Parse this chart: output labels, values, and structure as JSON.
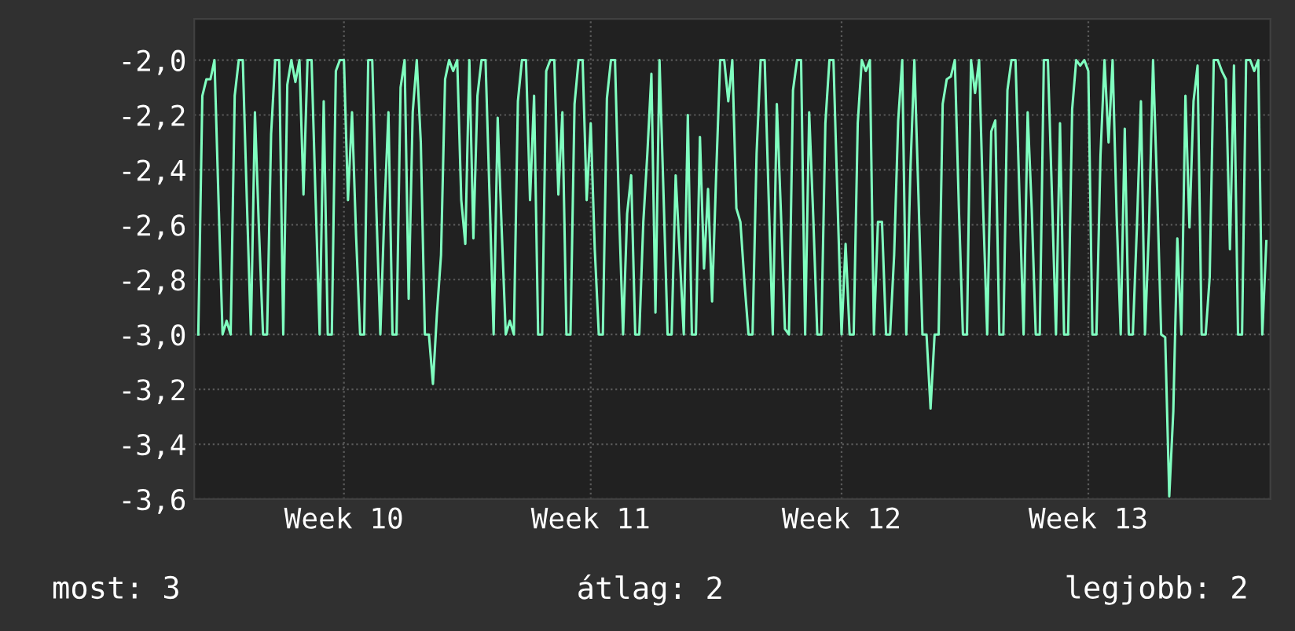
{
  "chart_data": {
    "type": "line",
    "categories": [
      null,
      null,
      null,
      null,
      null,
      null,
      null,
      null,
      null,
      null,
      null,
      null,
      null,
      null,
      null,
      null,
      null,
      null,
      null,
      null,
      null,
      null,
      null,
      null,
      null,
      null,
      null,
      null,
      null,
      null,
      null,
      null,
      null,
      null,
      null,
      null,
      "Week 10",
      null,
      null,
      null,
      null,
      null,
      null,
      null,
      null,
      null,
      null,
      null,
      null,
      null,
      null,
      null,
      null,
      null,
      null,
      null,
      null,
      null,
      null,
      null,
      null,
      null,
      null,
      null,
      null,
      null,
      null,
      null,
      null,
      null,
      null,
      null,
      null,
      null,
      null,
      null,
      null,
      null,
      null,
      null,
      null,
      null,
      null,
      null,
      null,
      null,
      null,
      null,
      null,
      null,
      null,
      null,
      null,
      null,
      null,
      null,
      null,
      "Week 11",
      null,
      null,
      null,
      null,
      null,
      null,
      null,
      null,
      null,
      null,
      null,
      null,
      null,
      null,
      null,
      null,
      null,
      null,
      null,
      null,
      null,
      null,
      null,
      null,
      null,
      null,
      null,
      null,
      null,
      null,
      null,
      null,
      null,
      null,
      null,
      null,
      null,
      null,
      null,
      null,
      null,
      null,
      null,
      null,
      null,
      null,
      null,
      null,
      null,
      null,
      null,
      null,
      null,
      null,
      null,
      null,
      null,
      null,
      null,
      null,
      null,
      "Week 12",
      null,
      null,
      null,
      null,
      null,
      null,
      null,
      null,
      null,
      null,
      null,
      null,
      null,
      null,
      null,
      null,
      null,
      null,
      null,
      null,
      null,
      null,
      null,
      null,
      null,
      null,
      null,
      null,
      null,
      null,
      null,
      null,
      null,
      null,
      null,
      null,
      null,
      null,
      null,
      null,
      null,
      null,
      null,
      null,
      null,
      null,
      null,
      null,
      null,
      null,
      null,
      null,
      null,
      null,
      null,
      null,
      null,
      null,
      null,
      null,
      "Week 13",
      null,
      null,
      null,
      null,
      null,
      null,
      null,
      null,
      null,
      null,
      null,
      null,
      null,
      null,
      null,
      null,
      null,
      null,
      null,
      null,
      null,
      null,
      null,
      null,
      null,
      null,
      null,
      null,
      null,
      null,
      null,
      null,
      null,
      null,
      null,
      null,
      null,
      null,
      null,
      null,
      null,
      null,
      null,
      null
    ],
    "series": [
      {
        "color": "#80ffc0",
        "values": [
          -3.0,
          -2.13,
          -2.07,
          -2.07,
          -2.0,
          -2.51,
          -3.0,
          -2.95,
          -3.0,
          -2.13,
          -2.0,
          -2.0,
          -2.51,
          -3.0,
          -2.19,
          -2.62,
          -3.0,
          -3.0,
          -2.27,
          -2.0,
          -2.0,
          -3.0,
          -2.09,
          -2.0,
          -2.08,
          -2.0,
          -2.49,
          -2.0,
          -2.0,
          -2.51,
          -3.0,
          -2.15,
          -3.0,
          -3.0,
          -2.04,
          -2.0,
          -2.0,
          -2.51,
          -2.19,
          -2.64,
          -3.0,
          -3.0,
          -2.0,
          -2.0,
          -2.54,
          -3.0,
          -2.55,
          -2.19,
          -3.0,
          -3.0,
          -2.1,
          -2.0,
          -2.87,
          -2.19,
          -2.0,
          -2.3,
          -3.0,
          -3.0,
          -3.18,
          -2.92,
          -2.71,
          -2.07,
          -2.0,
          -2.04,
          -2.0,
          -2.51,
          -2.67,
          -2.0,
          -2.65,
          -2.13,
          -2.0,
          -2.0,
          -2.5,
          -3.0,
          -2.21,
          -2.62,
          -3.0,
          -2.95,
          -3.0,
          -2.15,
          -2.0,
          -2.0,
          -2.51,
          -2.13,
          -3.0,
          -3.0,
          -2.04,
          -2.0,
          -2.0,
          -2.49,
          -2.19,
          -3.0,
          -3.0,
          -2.16,
          -2.0,
          -2.0,
          -2.51,
          -2.23,
          -2.69,
          -3.0,
          -3.0,
          -2.14,
          -2.0,
          -2.0,
          -2.55,
          -3.0,
          -2.56,
          -2.42,
          -3.0,
          -3.0,
          -2.59,
          -2.34,
          -2.05,
          -2.92,
          -2.0,
          -2.49,
          -3.0,
          -3.0,
          -2.42,
          -2.71,
          -3.0,
          -2.2,
          -3.0,
          -3.0,
          -2.28,
          -2.76,
          -2.47,
          -2.88,
          -2.42,
          -2.0,
          -2.0,
          -2.15,
          -2.0,
          -2.54,
          -2.59,
          -2.81,
          -3.0,
          -3.0,
          -2.34,
          -2.0,
          -2.0,
          -2.51,
          -3.0,
          -2.16,
          -2.55,
          -2.98,
          -3.0,
          -2.11,
          -2.0,
          -2.0,
          -3.0,
          -2.19,
          -2.57,
          -3.0,
          -3.0,
          -2.23,
          -2.0,
          -2.0,
          -2.51,
          -3.0,
          -2.67,
          -3.0,
          -3.0,
          -2.23,
          -2.0,
          -2.04,
          -2.0,
          -3.0,
          -2.59,
          -2.59,
          -3.0,
          -3.0,
          -2.71,
          -2.22,
          -2.0,
          -3.0,
          -2.41,
          -2.0,
          -2.49,
          -3.0,
          -3.0,
          -3.27,
          -3.0,
          -3.0,
          -2.16,
          -2.07,
          -2.06,
          -2.0,
          -2.54,
          -3.0,
          -3.0,
          -2.0,
          -2.12,
          -2.0,
          -2.54,
          -3.0,
          -2.26,
          -2.22,
          -3.0,
          -3.0,
          -2.11,
          -2.0,
          -2.0,
          -2.51,
          -3.0,
          -2.19,
          -2.54,
          -3.0,
          -3.0,
          -2.0,
          -2.0,
          -2.49,
          -3.0,
          -2.23,
          -3.0,
          -3.0,
          -2.18,
          -2.0,
          -2.02,
          -2.0,
          -2.04,
          -3.0,
          -3.0,
          -2.35,
          -2.0,
          -2.3,
          -2.0,
          -2.57,
          -3.0,
          -2.25,
          -3.0,
          -3.0,
          -2.61,
          -2.15,
          -3.0,
          -2.61,
          -2.0,
          -2.47,
          -3.0,
          -3.01,
          -3.59,
          -3.28,
          -2.65,
          -3.0,
          -2.13,
          -2.61,
          -2.15,
          -2.02,
          -3.0,
          -3.0,
          -2.79,
          -2.0,
          -2.0,
          -2.04,
          -2.07,
          -2.69,
          -2.02,
          -3.0,
          -3.0,
          -2.0,
          -2.0,
          -2.04,
          -2.0,
          -3.0,
          -2.66
        ]
      }
    ],
    "ylim": [
      -3.6,
      -1.85
    ],
    "yticks": [
      {
        "value": -3.6,
        "label": "-3,6"
      },
      {
        "value": -3.4,
        "label": "-3,4"
      },
      {
        "value": -3.2,
        "label": "-3,2"
      },
      {
        "value": -3.0,
        "label": "-3,0"
      },
      {
        "value": -2.8,
        "label": "-2,8"
      },
      {
        "value": -2.6,
        "label": "-2,6"
      },
      {
        "value": -2.4,
        "label": "-2,4"
      },
      {
        "value": -2.2,
        "label": "-2,2"
      },
      {
        "value": -2.0,
        "label": "-2,0"
      }
    ],
    "grid": true,
    "marker": "none",
    "line_style": "solid",
    "annotations": [
      "most: 3",
      "átlag: 2",
      "legjobb: 2"
    ]
  }
}
